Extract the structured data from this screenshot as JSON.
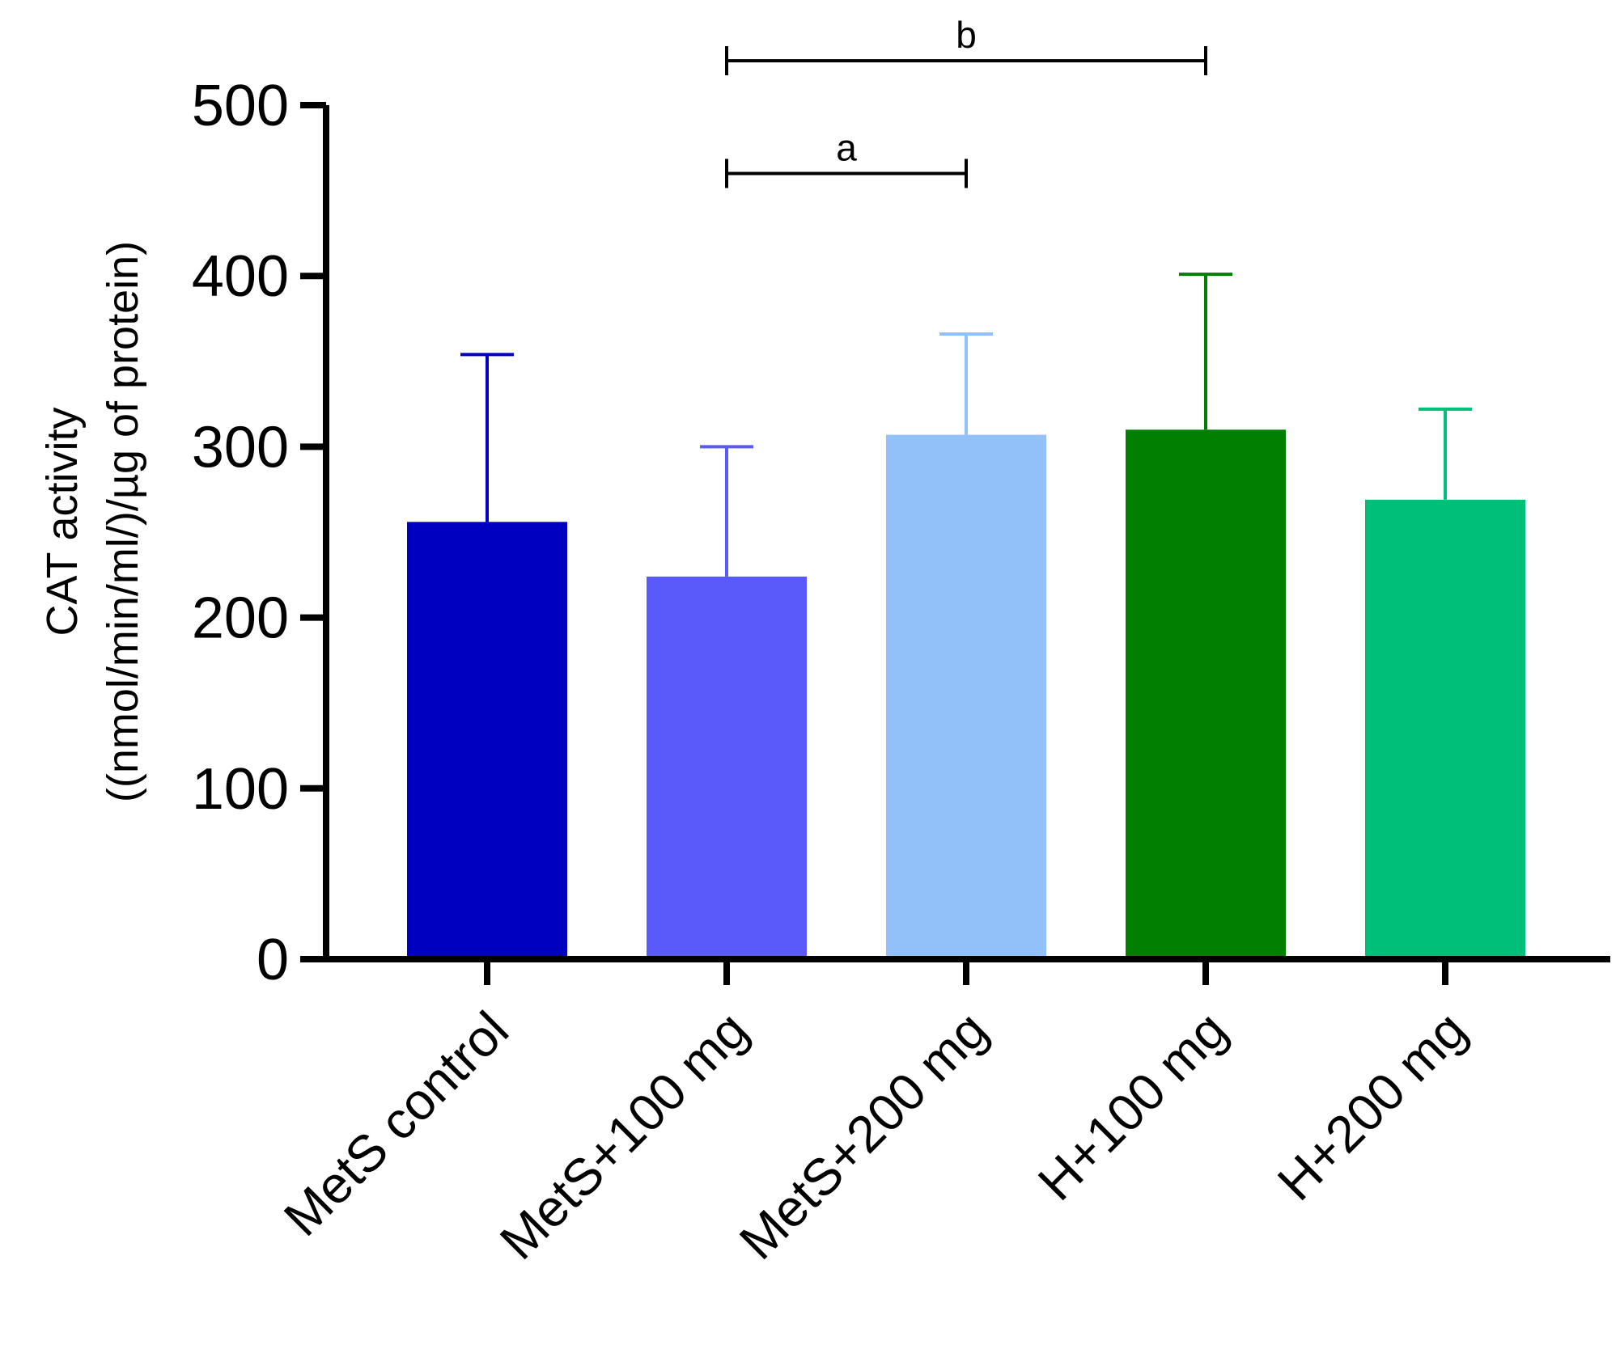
{
  "chart_data": {
    "type": "bar",
    "title": "",
    "xlabel": "",
    "ylabel_line1": "CAT activity",
    "ylabel_line2": "((nmol/min/ml/)/µg of protein)",
    "ylim": [
      0,
      500
    ],
    "yticks": [
      0,
      100,
      200,
      300,
      400,
      500
    ],
    "ytick_labels": [
      "0",
      "100",
      "200",
      "300",
      "400",
      "500"
    ],
    "categories": [
      "MetS control",
      "MetS+100 mg",
      "MetS+200 mg",
      "H+100 mg",
      "H+200 mg"
    ],
    "values": [
      256,
      224,
      307,
      310,
      269
    ],
    "error_upper": [
      354,
      300,
      366,
      401,
      322
    ],
    "colors": [
      "#0000c0",
      "#5a5afa",
      "#92c0f8",
      "#007f00",
      "#00bf78"
    ],
    "significance": [
      {
        "label": "a",
        "from_index": 1,
        "to_index": 2,
        "value": 460
      },
      {
        "label": "b",
        "from_index": 1,
        "to_index": 3,
        "value": 526
      }
    ]
  }
}
